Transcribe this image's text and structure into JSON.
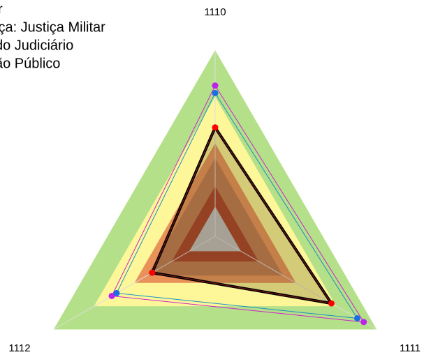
{
  "chart_data": {
    "type": "radar",
    "legend": [
      "r",
      "iça: Justiça Militar",
      "do Judiciário",
      "ão Público"
    ],
    "categories": [
      "1110",
      "1111",
      "1112"
    ],
    "ylim": [
      0,
      1
    ],
    "bands": [
      {
        "value": 1,
        "color": "#b5e08a"
      },
      {
        "value": 0.75,
        "color": "#fdf79a"
      },
      {
        "value": 0.5,
        "color": "#e8925a"
      },
      {
        "value": 0.42,
        "color": "#c07a52"
      },
      {
        "value": 0.27,
        "color": "#a8402a"
      },
      {
        "value": 0.16,
        "color": "#bfbfbf"
      }
    ],
    "series": [
      {
        "color": "#cc22cc",
        "marker_color": "#bb22ee",
        "values": [
          0.81,
          0.92,
          0.64
        ]
      },
      {
        "color": "#1a8fc0",
        "marker_color": "#1a6ee0",
        "values": [
          0.77,
          0.88,
          0.61
        ]
      },
      {
        "color": "#000000",
        "marker_color": "#ff0000",
        "values": [
          0.585,
          0.72,
          0.39
        ]
      }
    ]
  }
}
